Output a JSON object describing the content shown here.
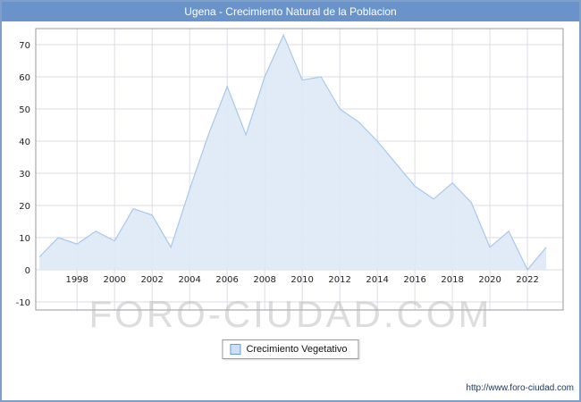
{
  "title": "Ugena - Crecimiento Natural de la Poblacion",
  "legend": {
    "label": "Crecimiento Vegetativo"
  },
  "watermark": "FORO-CIUDAD.COM",
  "footer": {
    "url": "http://www.foro-ciudad.com"
  },
  "colors": {
    "titlebar_bg": "#6A94C9",
    "titlebar_text": "#FFFFFF",
    "area_fill": "#DDE9F6",
    "area_stroke": "#A9C7E7",
    "grid": "#DCDCE6",
    "plot_border": "#9A9A9A",
    "axis_text": "#222222",
    "legend_swatch_fill": "#CCE0F5",
    "legend_swatch_border": "#6B9BD2"
  },
  "chart_data": {
    "type": "area",
    "title": "Ugena - Crecimiento Natural de la Poblacion",
    "series_name": "Crecimiento Vegetativo",
    "x": [
      1996,
      1997,
      1998,
      1999,
      2000,
      2001,
      2002,
      2003,
      2004,
      2005,
      2006,
      2007,
      2008,
      2009,
      2010,
      2011,
      2012,
      2013,
      2014,
      2015,
      2016,
      2017,
      2018,
      2019,
      2020,
      2021,
      2022,
      2023
    ],
    "values": [
      4,
      10,
      8,
      12,
      9,
      19,
      17,
      7,
      25,
      42,
      57,
      42,
      60,
      73,
      59,
      60,
      50,
      46,
      40,
      33,
      26,
      22,
      27,
      21,
      7,
      12,
      0,
      7
    ],
    "xticks": [
      1998,
      2000,
      2002,
      2004,
      2006,
      2008,
      2010,
      2012,
      2014,
      2016,
      2018,
      2020,
      2022
    ],
    "yticks": [
      -10,
      0,
      10,
      20,
      30,
      40,
      50,
      60,
      70
    ],
    "ylim": [
      -12.5,
      75
    ],
    "xlim": [
      1995.8,
      2023.9
    ],
    "baseline": 0,
    "grid": true,
    "legend_position": "bottom"
  }
}
